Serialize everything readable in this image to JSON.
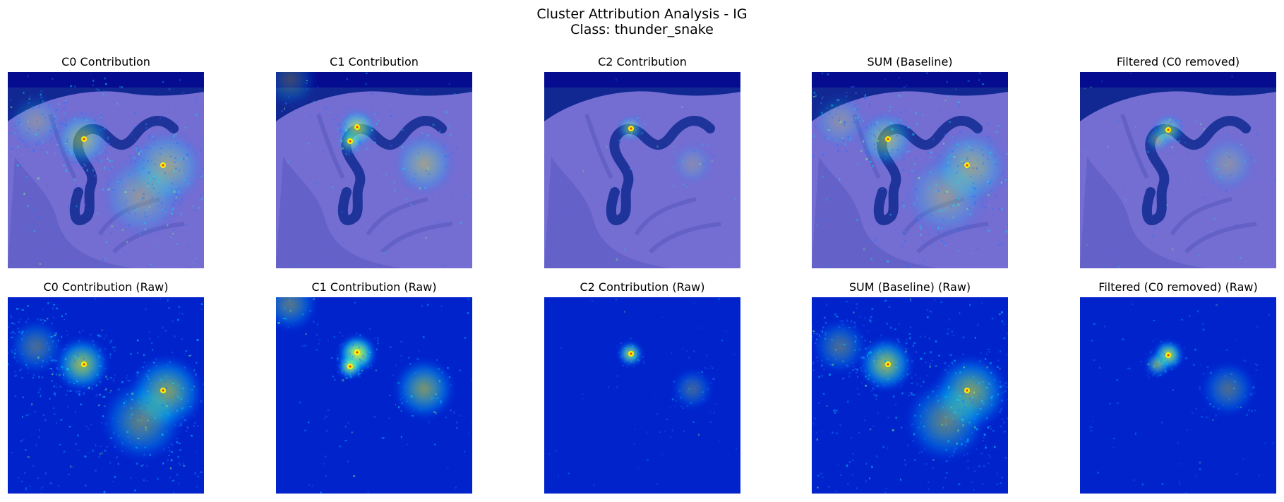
{
  "figure": {
    "title_line_1": "Cluster Attribution Analysis - IG",
    "title_line_2": "Class: thunder_snake"
  },
  "panels": [
    {
      "title": "C0 Contribution",
      "kind": "overlay",
      "cluster": "c0"
    },
    {
      "title": "C1 Contribution",
      "kind": "overlay",
      "cluster": "c1"
    },
    {
      "title": "C2 Contribution",
      "kind": "overlay",
      "cluster": "c2"
    },
    {
      "title": "SUM (Baseline)",
      "kind": "overlay",
      "cluster": "sum"
    },
    {
      "title": "Filtered (C0 removed)",
      "kind": "overlay",
      "cluster": "filtered"
    },
    {
      "title": "C0 Contribution (Raw)",
      "kind": "raw",
      "cluster": "c0"
    },
    {
      "title": "C1 Contribution (Raw)",
      "kind": "raw",
      "cluster": "c1"
    },
    {
      "title": "C2 Contribution (Raw)",
      "kind": "raw",
      "cluster": "c2"
    },
    {
      "title": "SUM (Baseline) (Raw)",
      "kind": "raw",
      "cluster": "sum"
    },
    {
      "title": "Filtered (C0 removed) (Raw)",
      "kind": "raw",
      "cluster": "filtered"
    }
  ],
  "colors": {
    "jet_low": "#00008f",
    "jet_mid": "#0040ff",
    "jet_cyan": "#00e0ff",
    "jet_green": "#7fff7f",
    "jet_yellow": "#ffff00",
    "jet_red": "#ff3000",
    "palm": "#b98cc8",
    "snake": "#2e2f6a",
    "background_fabric": "#1a1c60"
  }
}
